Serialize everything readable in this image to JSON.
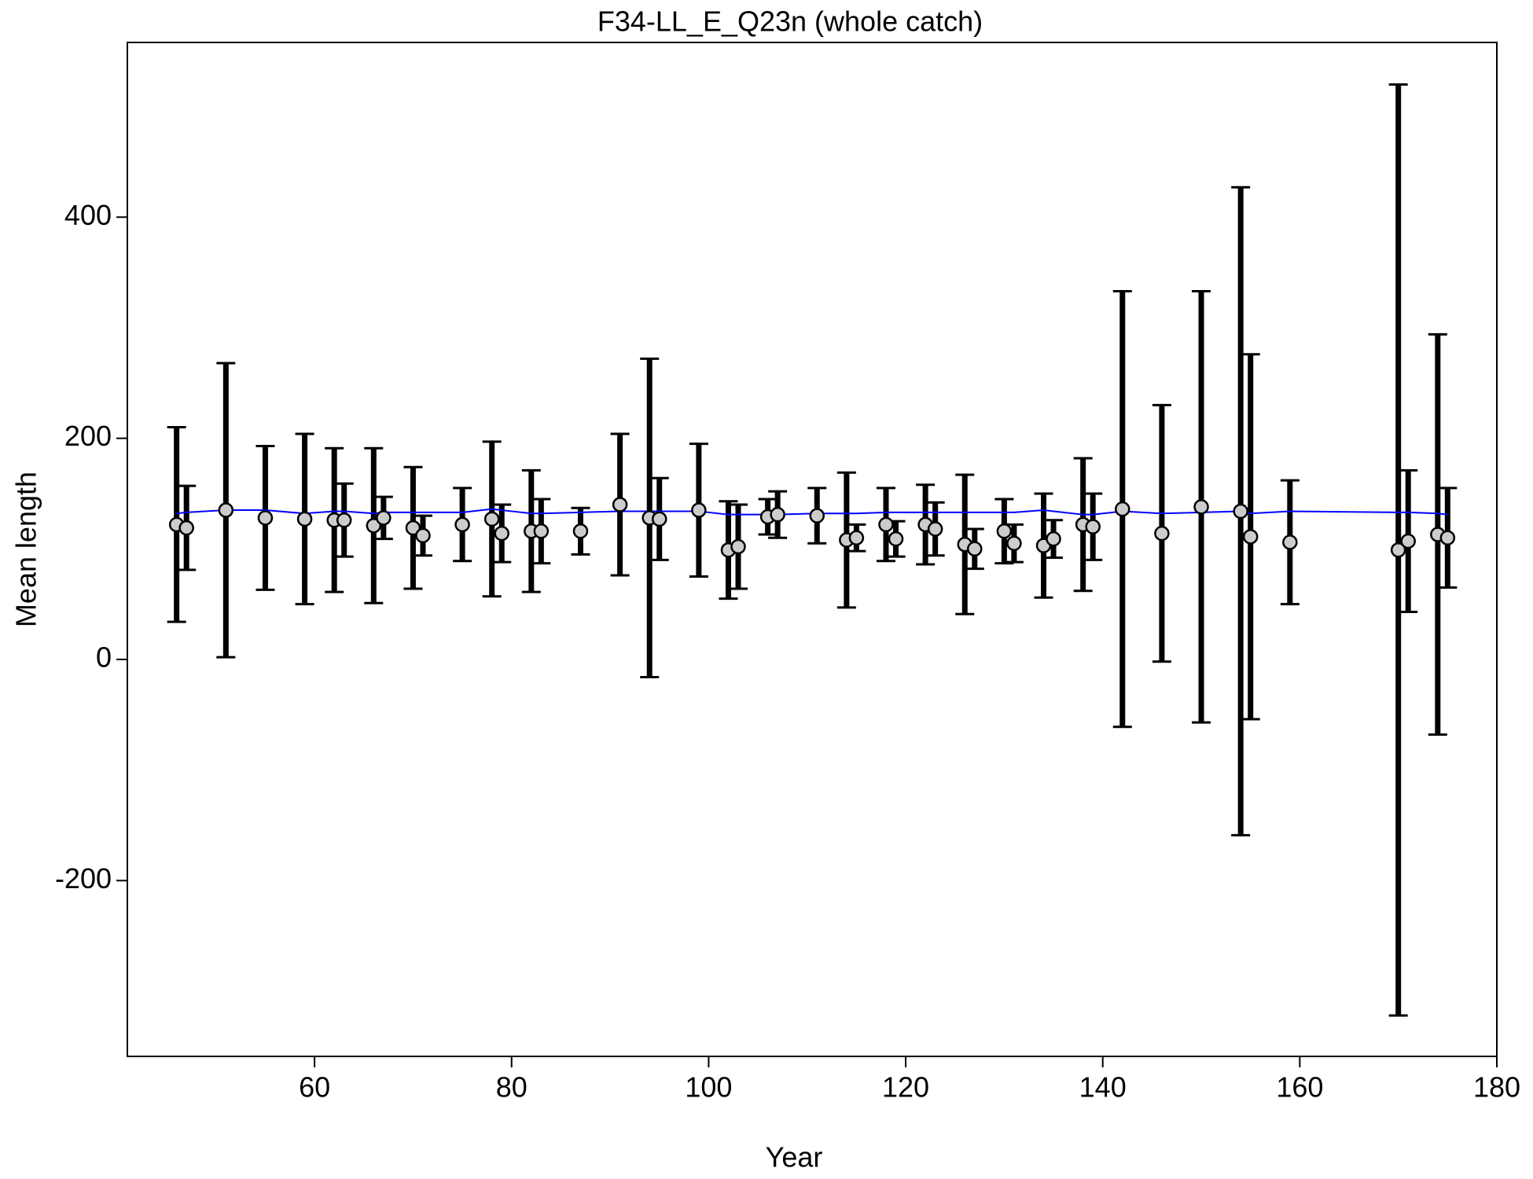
{
  "chart_data": {
    "type": "errorbar",
    "title": "F34-LL_E_Q23n (whole catch)",
    "xlabel": "Year",
    "ylabel": "Mean length",
    "x": [
      46,
      47,
      51,
      55,
      59,
      62,
      63,
      66,
      67,
      70,
      71,
      75,
      78,
      79,
      82,
      83,
      87,
      91,
      94,
      95,
      99,
      102,
      103,
      106,
      107,
      111,
      114,
      115,
      118,
      119,
      122,
      123,
      126,
      127,
      130,
      131,
      134,
      135,
      138,
      139,
      142,
      146,
      150,
      154,
      155,
      159,
      170,
      171,
      174,
      175
    ],
    "values": [
      122,
      119,
      135,
      128,
      127,
      126,
      126,
      121,
      128,
      119,
      112,
      122,
      127,
      114,
      116,
      116,
      116,
      140,
      128,
      127,
      135,
      99,
      102,
      129,
      131,
      130,
      108,
      110,
      122,
      109,
      122,
      118,
      104,
      100,
      116,
      105,
      103,
      109,
      122,
      120,
      136,
      114,
      138,
      134,
      111,
      106,
      99,
      107,
      113,
      110
    ],
    "errors": [
      88,
      38,
      133,
      65,
      77,
      65,
      33,
      70,
      19,
      55,
      18,
      33,
      70,
      26,
      55,
      29,
      21,
      64,
      144,
      37,
      60,
      44,
      38,
      16,
      21,
      25,
      61,
      12,
      33,
      16,
      36,
      24,
      63,
      18,
      29,
      17,
      47,
      17,
      60,
      30,
      197,
      116,
      195,
      293,
      165,
      56,
      421,
      64,
      181,
      45
    ],
    "fit": [
      132,
      133,
      135,
      135,
      132,
      134,
      134,
      132,
      133,
      133,
      133,
      133,
      136,
      135,
      132,
      132,
      133,
      134,
      134,
      134,
      134,
      131,
      131,
      131,
      131,
      132,
      132,
      132,
      133,
      133,
      133,
      133,
      133,
      133,
      133,
      133,
      135,
      134,
      131,
      131,
      134,
      132,
      133,
      134,
      132,
      134,
      133,
      133,
      132,
      131
    ],
    "color": "#000000",
    "point_color": "#cccccc",
    "fit_color": "#0000ff",
    "xlim": [
      41,
      180
    ],
    "ylim": [
      -359,
      558
    ],
    "xticks": [
      60,
      80,
      100,
      120,
      140,
      160,
      180
    ],
    "yticks": [
      -200,
      0,
      200,
      400
    ]
  }
}
